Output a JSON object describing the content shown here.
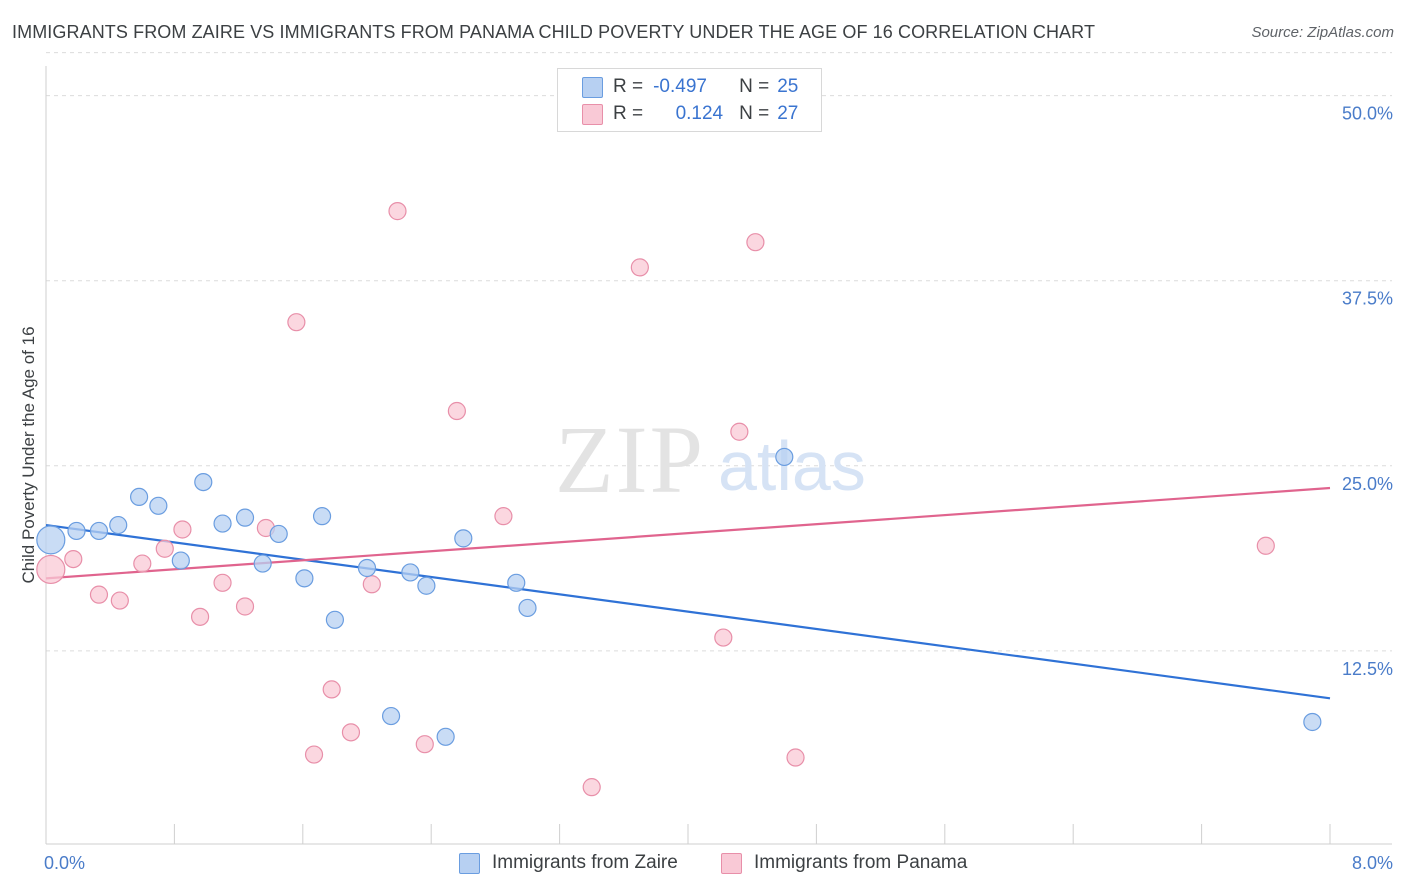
{
  "header": {
    "title": "IMMIGRANTS FROM ZAIRE VS IMMIGRANTS FROM PANAMA CHILD POVERTY UNDER THE AGE OF 16 CORRELATION CHART",
    "source": "Source: ZipAtlas.com"
  },
  "legend": {
    "r_label": "R =",
    "n_label": "N =",
    "zaire": {
      "r": "-0.497",
      "n": "25"
    },
    "panama": {
      "r": "0.124",
      "n": "27"
    }
  },
  "watermark": {
    "zip": "ZIP",
    "atlas": "atlas"
  },
  "colors": {
    "zaire_fill": "#b7d0f2",
    "zaire_stroke": "#6a9de0",
    "zaire_line": "#2f72d6",
    "panama_fill": "#f9c9d6",
    "panama_stroke": "#e88fa9",
    "panama_line": "#e0648e",
    "grid": "#dcdcdc",
    "tick_label": "#4a7cc9"
  },
  "chart_data": {
    "type": "scatter",
    "title": "IMMIGRANTS FROM ZAIRE VS IMMIGRANTS FROM PANAMA CHILD POVERTY UNDER THE AGE OF 16 CORRELATION CHART",
    "xlabel": "",
    "ylabel": "Child Poverty Under the Age of 16",
    "xlim": [
      0,
      8
    ],
    "ylim": [
      0,
      52
    ],
    "x_tick_labels": [
      "0.0%",
      "8.0%"
    ],
    "y_ticks": [
      12.5,
      25.0,
      37.5,
      50.0
    ],
    "y_tick_labels": [
      "12.5%",
      "25.0%",
      "37.5%",
      "50.0%"
    ],
    "grid": true,
    "legend_position": "bottom",
    "series": [
      {
        "name": "Immigrants from Zaire",
        "r": -0.497,
        "n": 25,
        "trend": {
          "x": [
            0,
            8
          ],
          "y": [
            21.0,
            9.3
          ]
        },
        "points": [
          {
            "x": 0.03,
            "y": 20.0,
            "big": true
          },
          {
            "x": 0.19,
            "y": 20.6
          },
          {
            "x": 0.33,
            "y": 20.6
          },
          {
            "x": 0.45,
            "y": 21.0
          },
          {
            "x": 0.58,
            "y": 22.9
          },
          {
            "x": 0.7,
            "y": 22.3
          },
          {
            "x": 0.84,
            "y": 18.6
          },
          {
            "x": 0.98,
            "y": 23.9
          },
          {
            "x": 1.1,
            "y": 21.1
          },
          {
            "x": 1.24,
            "y": 21.5
          },
          {
            "x": 1.35,
            "y": 18.4
          },
          {
            "x": 1.45,
            "y": 20.4
          },
          {
            "x": 1.61,
            "y": 17.4
          },
          {
            "x": 1.72,
            "y": 21.6
          },
          {
            "x": 1.8,
            "y": 14.6
          },
          {
            "x": 2.0,
            "y": 18.1
          },
          {
            "x": 2.15,
            "y": 8.1
          },
          {
            "x": 2.27,
            "y": 17.8
          },
          {
            "x": 2.37,
            "y": 16.9
          },
          {
            "x": 2.49,
            "y": 6.7
          },
          {
            "x": 2.6,
            "y": 20.1
          },
          {
            "x": 2.93,
            "y": 17.1
          },
          {
            "x": 3.0,
            "y": 15.4
          },
          {
            "x": 4.6,
            "y": 25.6
          },
          {
            "x": 7.89,
            "y": 7.7
          }
        ]
      },
      {
        "name": "Immigrants from Panama",
        "r": 0.124,
        "n": 27,
        "trend": {
          "x": [
            0,
            8
          ],
          "y": [
            17.4,
            23.5
          ]
        },
        "points": [
          {
            "x": 0.03,
            "y": 18.0,
            "big": true
          },
          {
            "x": 0.17,
            "y": 18.7
          },
          {
            "x": 0.33,
            "y": 16.3
          },
          {
            "x": 0.46,
            "y": 15.9
          },
          {
            "x": 0.6,
            "y": 18.4
          },
          {
            "x": 0.74,
            "y": 19.4
          },
          {
            "x": 0.85,
            "y": 20.7
          },
          {
            "x": 0.96,
            "y": 14.8
          },
          {
            "x": 1.1,
            "y": 17.1
          },
          {
            "x": 1.24,
            "y": 15.5
          },
          {
            "x": 1.37,
            "y": 20.8
          },
          {
            "x": 1.56,
            "y": 34.7
          },
          {
            "x": 1.67,
            "y": 5.5
          },
          {
            "x": 1.78,
            "y": 9.9
          },
          {
            "x": 1.9,
            "y": 7.0
          },
          {
            "x": 2.03,
            "y": 17.0
          },
          {
            "x": 2.19,
            "y": 42.2
          },
          {
            "x": 2.36,
            "y": 6.2
          },
          {
            "x": 2.56,
            "y": 28.7
          },
          {
            "x": 2.85,
            "y": 21.6
          },
          {
            "x": 3.4,
            "y": 3.3
          },
          {
            "x": 3.7,
            "y": 38.4
          },
          {
            "x": 4.22,
            "y": 13.4
          },
          {
            "x": 4.32,
            "y": 27.3
          },
          {
            "x": 4.42,
            "y": 40.1
          },
          {
            "x": 4.67,
            "y": 5.3
          },
          {
            "x": 7.6,
            "y": 19.6
          }
        ]
      }
    ]
  }
}
